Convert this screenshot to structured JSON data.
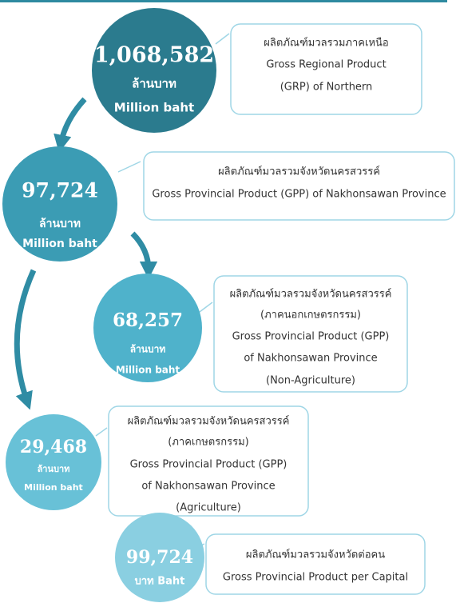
{
  "nodes": [
    {
      "value": "1,068,582",
      "unit": [
        "ล้านบาท",
        "Million baht"
      ],
      "description": [
        "ผลิตภัณฑ์มวลรวมภาคเหนือ",
        "Gross Regional Product",
        "(GRP) of Northern"
      ]
    },
    {
      "value": "97,724",
      "unit": [
        "ล้านบาท",
        "Million baht"
      ],
      "description": [
        "ผลิตภัณฑ์มวลรวมจังหวัดนครสวรรค์",
        "Gross Provincial Product (GPP) of Nakhonsawan Province"
      ]
    },
    {
      "value": "68,257",
      "unit": [
        "ล้านบาท",
        "Million baht"
      ],
      "description": [
        "ผลิตภัณฑ์มวลรวมจังหวัดนครสวรรค์",
        "(ภาคนอกเกษตรกรรม)",
        "Gross Provincial Product (GPP)",
        "of Nakhonsawan Province",
        "(Non-Agriculture)"
      ]
    },
    {
      "value": "29,468",
      "unit": [
        "ล้านบาท",
        "Million baht"
      ],
      "description": [
        "ผลิตภัณฑ์มวลรวมจังหวัดนครสวรรค์",
        "(ภาคเกษตรกรรม)",
        "Gross Provincial Product (GPP)",
        "of Nakhonsawan Province",
        "(Agriculture)"
      ]
    },
    {
      "value": "99,724",
      "unit": [
        "บาท Baht"
      ],
      "description": [
        "ผลิตภัณฑ์มวลรวมจังหวัดต่อคน",
        "Gross Provincial Product per Capital"
      ]
    }
  ]
}
